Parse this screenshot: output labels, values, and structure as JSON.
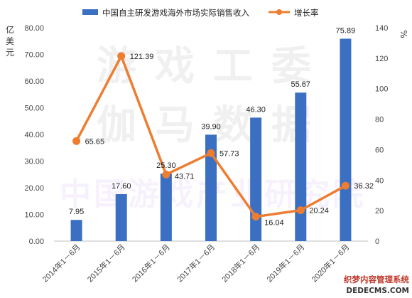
{
  "chart_data": {
    "type": "bar+line",
    "categories": [
      "2014年1－6月",
      "2015年1－6月",
      "2016年1－6月",
      "2017年1－6月",
      "2018年1－6月",
      "2019年1－6月",
      "2020年1－6月"
    ],
    "series": [
      {
        "name": "中国自主研发游戏海外市场实际销售收入",
        "type": "bar",
        "axis": "left",
        "color": "#3b6fc2",
        "values": [
          7.95,
          17.6,
          25.3,
          39.9,
          46.3,
          55.67,
          75.89
        ],
        "labels": [
          "7.95",
          "17.60",
          "25.30",
          "39.90",
          "46.30",
          "55.67",
          "75.89"
        ]
      },
      {
        "name": "增长率",
        "type": "line",
        "axis": "right",
        "color": "#ed7d31",
        "values": [
          65.65,
          121.39,
          43.71,
          57.73,
          16.04,
          20.24,
          36.32
        ],
        "labels": [
          "65.65",
          "121.39",
          "43.71",
          "57.73",
          "16.04",
          "20.24",
          "36.32"
        ]
      }
    ],
    "yleft": {
      "title": "亿美元",
      "lim": [
        0,
        80
      ],
      "ticks": [
        "0.00",
        "10.00",
        "20.00",
        "30.00",
        "40.00",
        "50.00",
        "60.00",
        "70.00",
        "80.00"
      ]
    },
    "yright": {
      "title": "%",
      "lim": [
        0,
        140
      ],
      "ticks": [
        "0",
        "20",
        "40",
        "60",
        "80",
        "100",
        "120",
        "140"
      ]
    },
    "grid": false,
    "legend": "top"
  },
  "watermark": {
    "line1": "游戏工委",
    "line2": "伽马数据",
    "line3": "中国游戏产业研究院"
  },
  "badge": {
    "line1": "织梦内容管理系统",
    "line2": "DEDECMS.COM"
  }
}
